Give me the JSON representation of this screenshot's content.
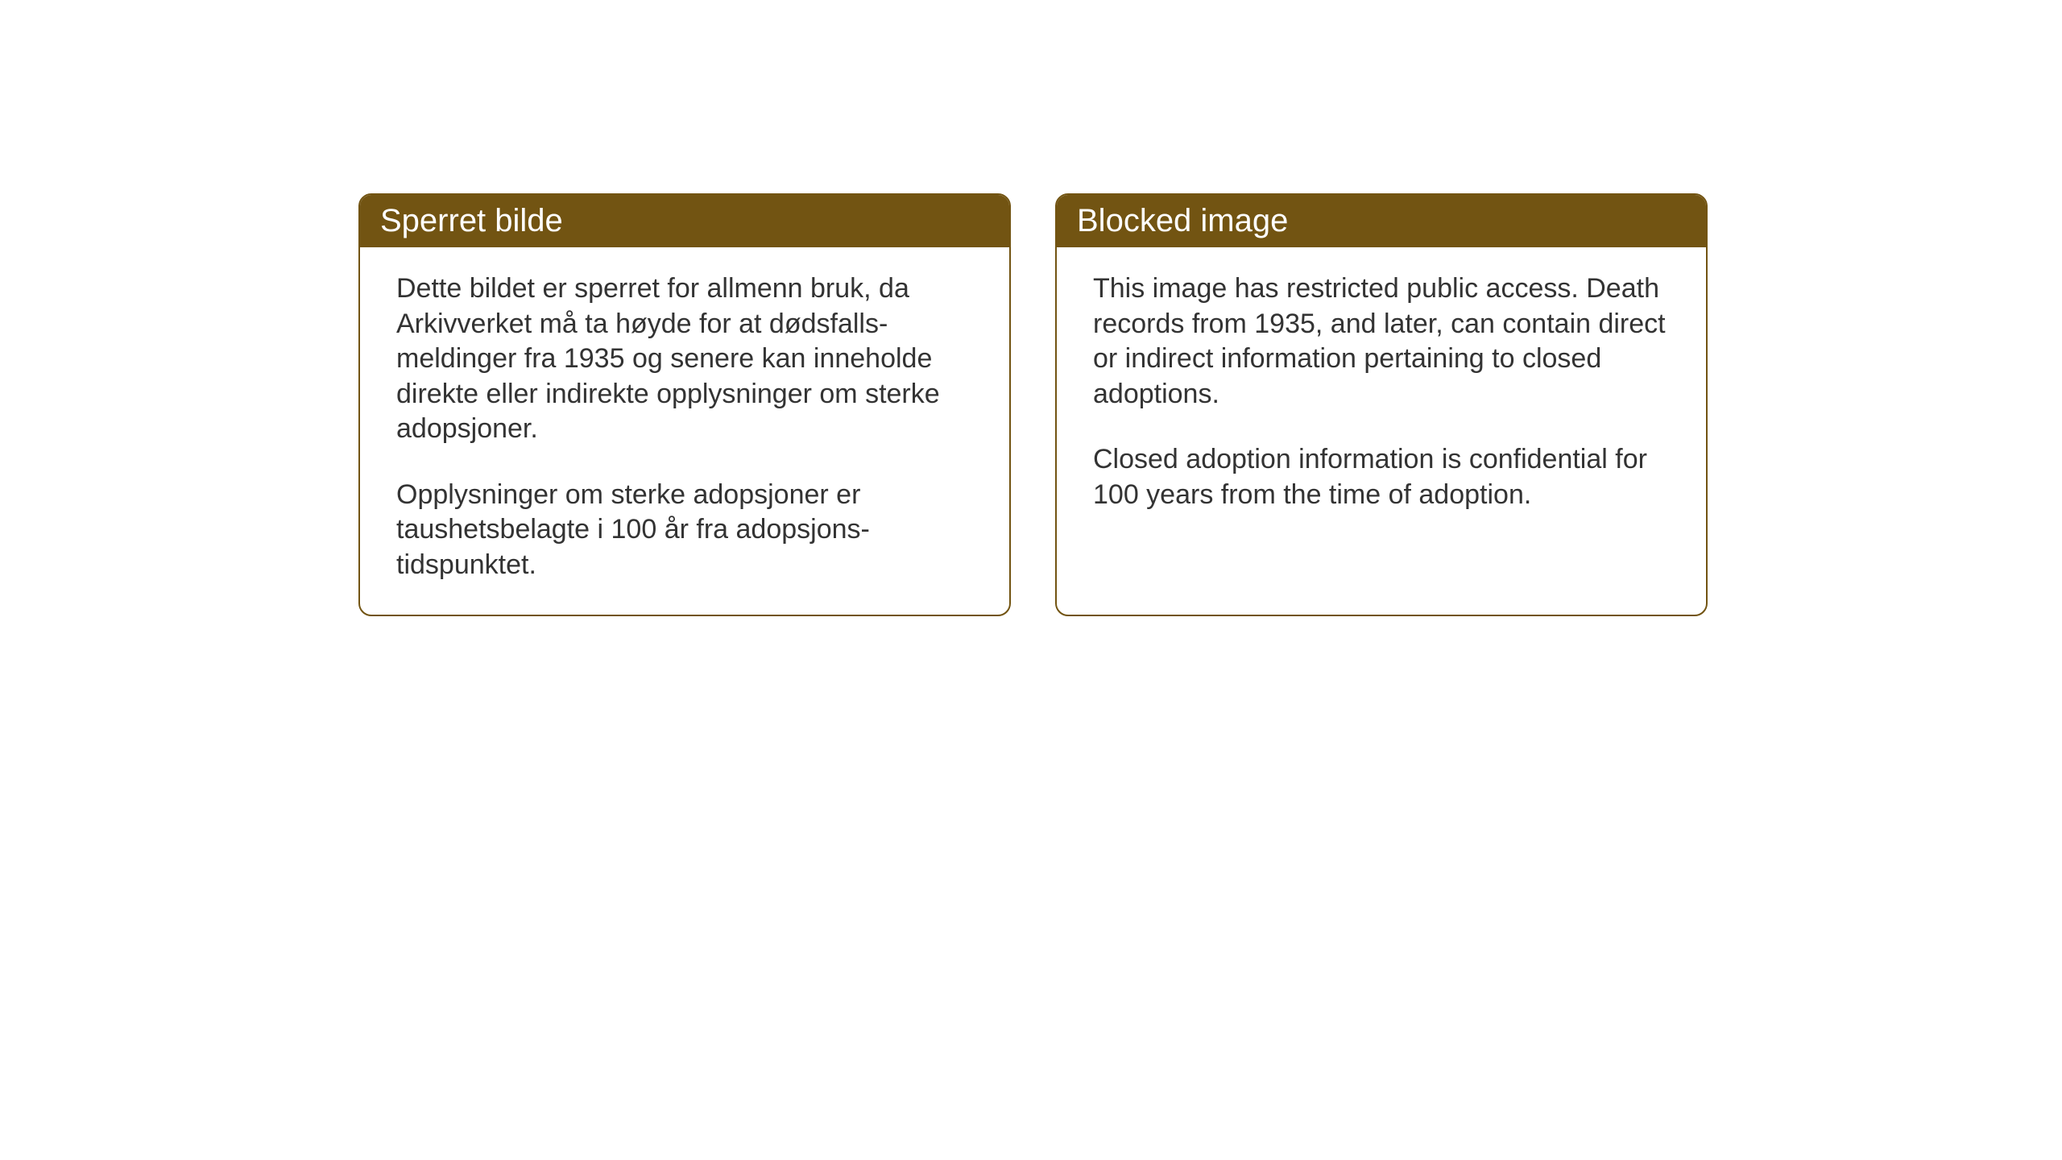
{
  "layout": {
    "background_color": "#ffffff",
    "card_border_color": "#725412",
    "card_border_radius": 16,
    "card_border_width": 2,
    "header_background_color": "#725412",
    "header_text_color": "#ffffff",
    "body_text_color": "#333333",
    "header_font_size": 40,
    "body_font_size": 34
  },
  "cards": {
    "norwegian": {
      "title": "Sperret bilde",
      "paragraph1": "Dette bildet er sperret for allmenn bruk, da Arkivverket må ta høyde for at dødsfalls-meldinger fra 1935 og senere kan inneholde direkte eller indirekte opplysninger om sterke adopsjoner.",
      "paragraph2": "Opplysninger om sterke adopsjoner er taushetsbelagte i 100 år fra adopsjons-tidspunktet."
    },
    "english": {
      "title": "Blocked image",
      "paragraph1": "This image has restricted public access. Death records from 1935, and later, can contain direct or indirect information pertaining to closed adoptions.",
      "paragraph2": "Closed adoption information is confidential for 100 years from the time of adoption."
    }
  }
}
